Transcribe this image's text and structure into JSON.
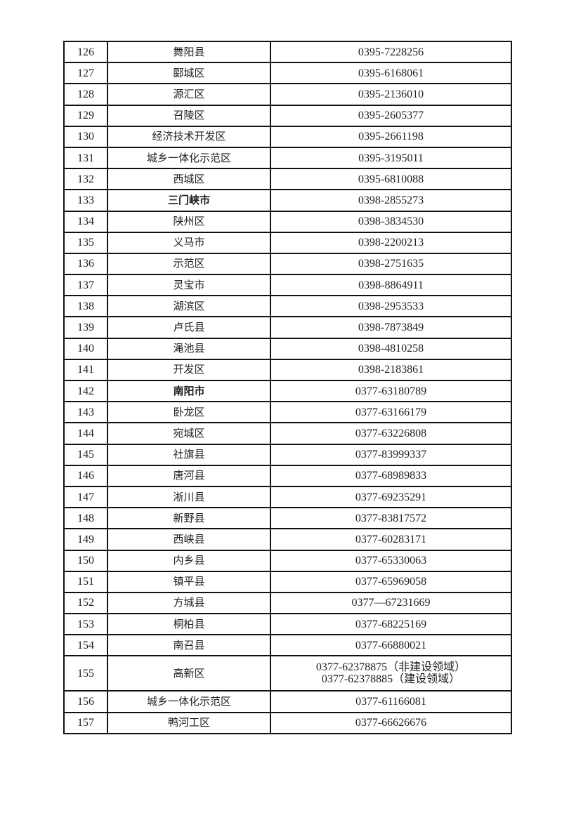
{
  "table": {
    "rows": [
      {
        "no": "126",
        "name": "舞阳县",
        "phones": [
          "0395-7228256"
        ]
      },
      {
        "no": "127",
        "name": "郾城区",
        "phones": [
          "0395-6168061"
        ]
      },
      {
        "no": "128",
        "name": "源汇区",
        "phones": [
          "0395-2136010"
        ]
      },
      {
        "no": "129",
        "name": "召陵区",
        "phones": [
          "0395-2605377"
        ]
      },
      {
        "no": "130",
        "name": "经济技术开发区",
        "phones": [
          "0395-2661198"
        ]
      },
      {
        "no": "131",
        "name": "城乡一体化示范区",
        "phones": [
          "0395-3195011"
        ]
      },
      {
        "no": "132",
        "name": "西城区",
        "phones": [
          "0395-6810088"
        ]
      },
      {
        "no": "133",
        "name": "三门峡市",
        "bold": true,
        "phones": [
          "0398-2855273"
        ]
      },
      {
        "no": "134",
        "name": "陕州区",
        "phones": [
          "0398-3834530"
        ]
      },
      {
        "no": "135",
        "name": "义马市",
        "phones": [
          "0398-2200213"
        ]
      },
      {
        "no": "136",
        "name": "示范区",
        "phones": [
          "0398-2751635"
        ]
      },
      {
        "no": "137",
        "name": "灵宝市",
        "phones": [
          "0398-8864911"
        ]
      },
      {
        "no": "138",
        "name": "湖滨区",
        "phones": [
          "0398-2953533"
        ]
      },
      {
        "no": "139",
        "name": "卢氏县",
        "phones": [
          "0398-7873849"
        ]
      },
      {
        "no": "140",
        "name": "渑池县",
        "phones": [
          "0398-4810258"
        ]
      },
      {
        "no": "141",
        "name": "开发区",
        "phones": [
          "0398-2183861"
        ]
      },
      {
        "no": "142",
        "name": "南阳市",
        "bold": true,
        "phones": [
          "0377-63180789"
        ]
      },
      {
        "no": "143",
        "name": "卧龙区",
        "phones": [
          "0377-63166179"
        ]
      },
      {
        "no": "144",
        "name": "宛城区",
        "phones": [
          "0377-63226808"
        ]
      },
      {
        "no": "145",
        "name": "社旗县",
        "phones": [
          "0377-83999337"
        ]
      },
      {
        "no": "146",
        "name": "唐河县",
        "phones": [
          "0377-68989833"
        ]
      },
      {
        "no": "147",
        "name": "淅川县",
        "phones": [
          "0377-69235291"
        ]
      },
      {
        "no": "148",
        "name": "新野县",
        "phones": [
          "0377-83817572"
        ]
      },
      {
        "no": "149",
        "name": "西峡县",
        "phones": [
          "0377-60283171"
        ]
      },
      {
        "no": "150",
        "name": "内乡县",
        "phones": [
          "0377-65330063"
        ]
      },
      {
        "no": "151",
        "name": "镇平县",
        "phones": [
          "0377-65969058"
        ]
      },
      {
        "no": "152",
        "name": "方城县",
        "phones": [
          "0377—67231669"
        ]
      },
      {
        "no": "153",
        "name": "桐柏县",
        "phones": [
          "0377-68225169"
        ]
      },
      {
        "no": "154",
        "name": "南召县",
        "phones": [
          "0377-66880021"
        ]
      },
      {
        "no": "155",
        "name": "高新区",
        "phones": [
          "0377-62378875（非建设领域）",
          "0377-62378885（建设领域）"
        ]
      },
      {
        "no": "156",
        "name": "城乡一体化示范区",
        "phones": [
          "0377-61166081"
        ]
      },
      {
        "no": "157",
        "name": "鸭河工区",
        "phones": [
          "0377-66626676"
        ]
      }
    ]
  }
}
